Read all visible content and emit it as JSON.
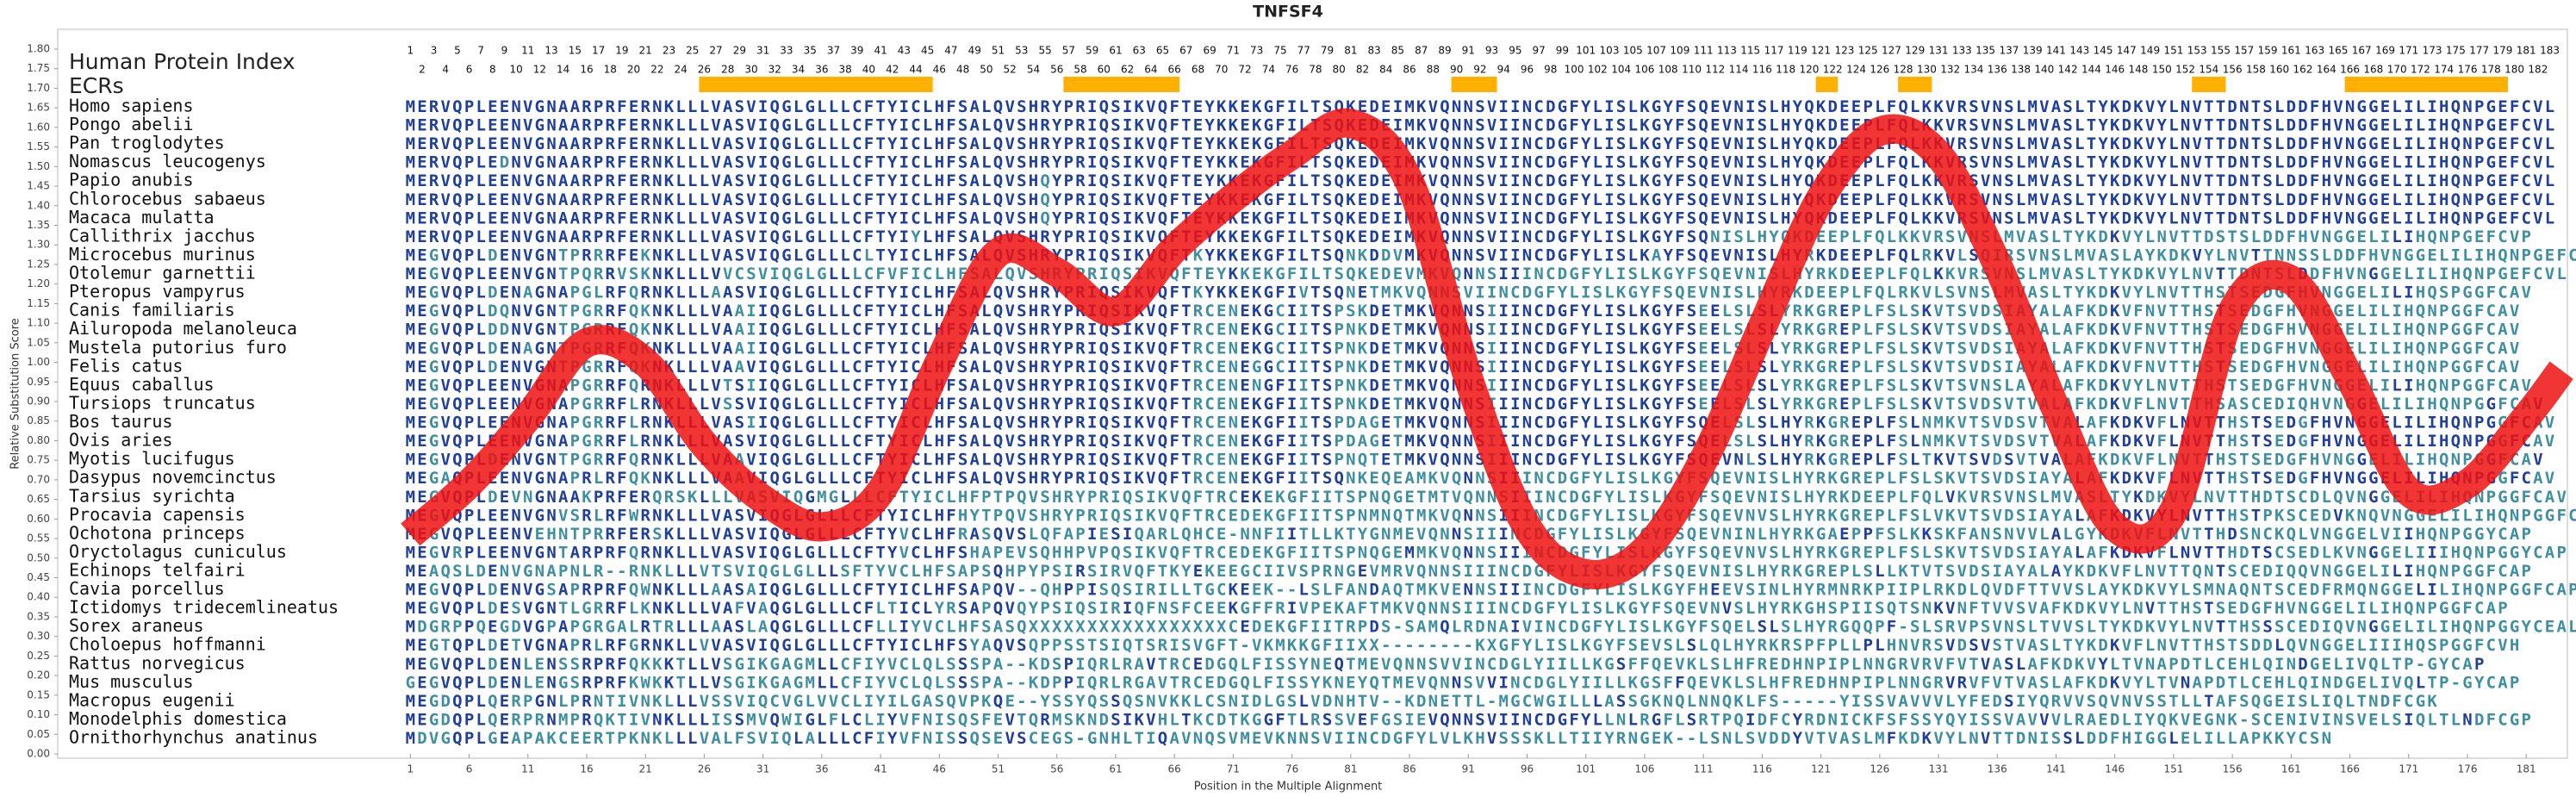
{
  "chart_data": {
    "type": "line",
    "title": "TNFSF4",
    "xlabel": "Position in the Multiple Alignment",
    "ylabel": "Relative Substitution Score",
    "row_header": "Human Protein Index",
    "ecr_label": "ECRs",
    "ecr_color": "#ffb000",
    "ecrs": [
      [
        26,
        45
      ],
      [
        57,
        66
      ],
      [
        90,
        93
      ],
      [
        121,
        122
      ],
      [
        128,
        130
      ],
      [
        153,
        155
      ],
      [
        166,
        179
      ]
    ],
    "protein_index": [
      1,
      2,
      3,
      4,
      5,
      6,
      7,
      8,
      9,
      10,
      11,
      12,
      13,
      14,
      15,
      16,
      17,
      18,
      19,
      20,
      21,
      22,
      23,
      24,
      25,
      26,
      27,
      28,
      29,
      30,
      31,
      32,
      33,
      34,
      35,
      36,
      37,
      38,
      39,
      40,
      41,
      42,
      43,
      44,
      45,
      46,
      47,
      48,
      49,
      50,
      51,
      52,
      53,
      54,
      55,
      56,
      57,
      58,
      59,
      60,
      61,
      62,
      63,
      64,
      65,
      66,
      67,
      68,
      69,
      70,
      71,
      72,
      73,
      74,
      75,
      76,
      77,
      78,
      79,
      80,
      81,
      82,
      83,
      84,
      85,
      86,
      87,
      88,
      89,
      90,
      91,
      92,
      93,
      94,
      95,
      96,
      97,
      98,
      99,
      100,
      101,
      102,
      103,
      104,
      105,
      106,
      107,
      108,
      109,
      110,
      111,
      112,
      113,
      114,
      115,
      116,
      117,
      118,
      119,
      120,
      121,
      122,
      123,
      124,
      125,
      126,
      127,
      128,
      129,
      130,
      131,
      132,
      133,
      134,
      135,
      136,
      137,
      138,
      139,
      140,
      141,
      142,
      143,
      144,
      145,
      146,
      147,
      148,
      149,
      150,
      151,
      152,
      153,
      154,
      155,
      156,
      157,
      158,
      159,
      160,
      161,
      162,
      163,
      164,
      165,
      166,
      167,
      168,
      169,
      170,
      171,
      172,
      173,
      174,
      175,
      176,
      177,
      178,
      179,
      180,
      181,
      182,
      183
    ],
    "xlim": [
      -29,
      184.5
    ],
    "ylim": [
      0,
      1.8
    ],
    "xticks": [
      1,
      6,
      11,
      16,
      21,
      26,
      31,
      36,
      41,
      46,
      51,
      56,
      61,
      66,
      71,
      76,
      81,
      86,
      91,
      96,
      101,
      106,
      111,
      116,
      121,
      126,
      131,
      136,
      141,
      146,
      151,
      156,
      161,
      166,
      171,
      176,
      181
    ],
    "yticks": [
      {
        "value": 0,
        "label": "0.00"
      },
      {
        "value": 0.05,
        "label": "0.05"
      },
      {
        "value": 0.1,
        "label": "0.10"
      },
      {
        "value": 0.15,
        "label": "0.15"
      },
      {
        "value": 0.2,
        "label": "0.20"
      },
      {
        "value": 0.25,
        "label": "0.25"
      },
      {
        "value": 0.3,
        "label": "0.30"
      },
      {
        "value": 0.35,
        "label": "0.35"
      },
      {
        "value": 0.4,
        "label": "0.40"
      },
      {
        "value": 0.45,
        "label": "0.45"
      },
      {
        "value": 0.5,
        "label": "0.50"
      },
      {
        "value": 0.55,
        "label": "0.55"
      },
      {
        "value": 0.6,
        "label": "0.60"
      },
      {
        "value": 0.65,
        "label": "0.65"
      },
      {
        "value": 0.7,
        "label": "0.70"
      },
      {
        "value": 0.75,
        "label": "0.75"
      },
      {
        "value": 0.8,
        "label": "0.80"
      },
      {
        "value": 0.85,
        "label": "0.85"
      },
      {
        "value": 0.9,
        "label": "0.90"
      },
      {
        "value": 0.95,
        "label": "0.95"
      },
      {
        "value": 1,
        "label": "1.00"
      },
      {
        "value": 1.05,
        "label": "1.05"
      },
      {
        "value": 1.1,
        "label": "1.10"
      },
      {
        "value": 1.15,
        "label": "1.15"
      },
      {
        "value": 1.2,
        "label": "1.20"
      },
      {
        "value": 1.25,
        "label": "1.25"
      },
      {
        "value": 1.3,
        "label": "1.30"
      },
      {
        "value": 1.35,
        "label": "1.35"
      },
      {
        "value": 1.4,
        "label": "1.40"
      },
      {
        "value": 1.45,
        "label": "1.45"
      },
      {
        "value": 1.5,
        "label": "1.50"
      },
      {
        "value": 1.55,
        "label": "1.55"
      },
      {
        "value": 1.6,
        "label": "1.60"
      },
      {
        "value": 1.65,
        "label": "1.65"
      },
      {
        "value": 1.7,
        "label": "1.70"
      },
      {
        "value": 1.75,
        "label": "1.75"
      },
      {
        "value": 1.8,
        "label": "1.80"
      }
    ],
    "series": [
      {
        "color": "#ee1111",
        "x": [
          1,
          6,
          11,
          16,
          21,
          26,
          31,
          36,
          41,
          46,
          51,
          56,
          61,
          66,
          71,
          76,
          81,
          86,
          91,
          96,
          101,
          106,
          111,
          116,
          121,
          126,
          131,
          136,
          141,
          146,
          151,
          156,
          161,
          166,
          171,
          176,
          181,
          184
        ],
        "values": [
          0.56,
          0.69,
          0.86,
          1.05,
          1.0,
          0.79,
          0.65,
          0.58,
          0.67,
          1.0,
          1.28,
          1.23,
          1.13,
          1.29,
          1.42,
          1.53,
          1.61,
          1.46,
          0.96,
          0.58,
          0.46,
          0.52,
          0.75,
          1.09,
          1.42,
          1.59,
          1.53,
          1.25,
          0.88,
          0.58,
          0.62,
          1.13,
          1.21,
          0.96,
          0.67,
          0.69,
          0.86,
          0.98
        ]
      }
    ],
    "conserved_color": "#1f3f99",
    "variable_color": "#3f8fa0",
    "alignment": {
      "species": [
        "Homo sapiens",
        "Pongo abelii",
        "Pan troglodytes",
        "Nomascus leucogenys",
        "Papio anubis",
        "Chlorocebus sabaeus",
        "Macaca mulatta",
        "Callithrix jacchus",
        "Microcebus murinus",
        "Otolemur garnettii",
        "Pteropus vampyrus",
        "Canis familiaris",
        "Ailuropoda melanoleuca",
        "Mustela putorius furo",
        "Felis catus",
        "Equus caballus",
        "Tursiops truncatus",
        "Bos taurus",
        "Ovis aries",
        "Myotis lucifugus",
        "Dasypus novemcinctus",
        "Tarsius syrichta",
        "Procavia capensis",
        "Ochotona princeps",
        "Oryctolagus cuniculus",
        "Echinops telfairi",
        "Cavia porcellus",
        "Ictidomys tridecemlineatus",
        "Sorex araneus",
        "Choloepus hoffmanni",
        "Rattus norvegicus",
        "Mus musculus",
        "Macropus eugenii",
        "Monodelphis domestica",
        "Ornithorhynchus anatinus"
      ],
      "sequences": [
        "MERVQPLEENVGNAARPRFERNKLLLVASVIQGLGLLLCFTYICLHFSALQVSHRYPRIQSIKVQFTEYKKEKGFILTSQKEDEIMKVQNNSVIINCDGFYLISLKGYFSQEVNISLHYQKDEEPLFQLKKVRSVNSLMVASLTYKDKVYLNVTTDNTSLDDFHVNGGELILIHQNPGEFCVL",
        "MERVQPLEENVGNAARPRFERNKLLLVASVIQGLGLLLCFTYICLHFSALQVSHRYPRIQSIKVQFTEYKKEKGFILTSQKEDEIMKVQNNSVIINCDGFYLISLKGYFSQEVNISLHYQKDEEPLFQLKKVRSVNSLMVASLTYKDKVYLNVTTDNTSLDDFHVNGGELILIHQNPGEFCVL",
        "MERVQPLEENVGNAARPRFERNKLLLVASVIQGLGLLLCFTYICLHFSALQVSHRYPRIQSIKVQFTEYKKEKGFILTSQKEDEIMKVQNNSVIINCDGFYLISLKGYFSQEVNISLHYQKDEEPLFQLKKVRSVNSLMVASLTYKDKVYLNVTTDNTSLDDFHVNGGELILIHQNPGEFCVL",
        "MERVQPLEDNVGNAARPRFERNKLLLVASVIQGLGLLLCFTYICLHFSALQVSHRYPRIQSIKVQFTEYKKEKGFILTSQKEDEIMKVQNNSVIINCDGFYLISLKGYFSQEVNISLHYQKDEEPLFQLKKVRSVNSLMVASLTYKDKVYLNVTTDNTSLDDFHVNGGELILIHQNPGEFCVL",
        "MERVQPLEENVGNAARPRFERNKLLLVASVIQGLGLLLCFTYICLHFSALQVSHQYPRIQSIKVQFTEYKKEKGFILTSQKEDEIMKVQNNSVIINCDGFYLISLKGYFSQEVNISLHYQKDEEPLFQLKKVRSVNSLMVASLTYKDKVYLNVTTDNTSLDDFHVNGGELILIHQNPGEFCVL",
        "MERVQPLEENVGNAARPRFERNKLLLVASVIQGLGLLLCFTYICLHFSALQVSHQYPRIQSIKVQFTEYKKEKGFILTSQKEDEIMKVQNNSVIINCDGFYLISLKGYFSQEVNISLHYQKDEEPLFQLKKVRSVNSLMVASLTYKDKVYLNVTTDNTSLDDFHVNGGELILIHQNPGEFCVL",
        "MERVQPLEENVGNAARPRFERNKLLLVASVIQGLGLLLCFTYICLHFSALQVSHQYPRIQSIKVQFTEYKKEKGFILTSQKEDEIMKVQNNSVIINCDGFYLISLKGYFSQEVNISLHYQKDEEPLFQLKKVRSVNSLMVASLTYKDKVYLNVTTDNTSLDDFHVNGGELILIHQNPGEFCVL",
        "MERVQPLEENVGNAARPRFERNKLLLVASVIQGLGLLLCFTYIYLHFSALQVSHRYPRIQSIKVQFTEYKKEKGFILTSQKEDEIMKVQNNSVIINCDGFYLISLKGYFSQNISLHYQKDEEPLFQLKKVRSVNSLMVASLTYKDKVYLNVTTDSTSLDDFHVNGGELILIHQNPGEFCVP",
        "MEGVQPLDENVGNTPRRRFEKNKLLLVASVIQGLGLLLCLTYICLHFSALQVSHRYPRIQSIKVQFTKYKKEKGFILTSQNKDDVMKVQNNSVIINCDGFYLISLKAYFSQEVNISLHYRKDEEPLFQLRKVLSQIRSVNSLMVASLAYKDKVYLNVTTNNSSLDDFHVNGGELILIHQNPGEFCAH",
        "MEGVQPLEENVGNTPQRRVSKNKLLLVVCSVIQGLGLLLCFVFICLHFSALQVSHRYPRIQSIKVQFTEYKKEKGFILTSQKEDEVMKVQNNSIIINCDGFYLISLKGYFSQEVNISLHYRKDEEPLFQLKKVRSVNSLMVASLTYKDKVYLNVTTDNTSLDDFHVNGGELILIHQNPGEFCVL",
        "MEGVQPLDENAGNAPGLRFQRNKLLLAASVIQGLGLLLCFTYICLHFSALQVSHRYPRIQSIKVQFTKYKKEKGFIVTSQNETMKVQNNSVIINCDGFYLISLKGYFSQEVNISLHYRKDEEPLFQLRKVLSVNSLMVASLTYKDKVYLNVTTHSTSEDGFHVNGGELILIHQSPGGFCAV",
        "MEGVQPLDQNVGNTPGRRFQKNKLLLVAAIIQGLGLLLCFTYICLHFSALQVSHRYPRIQSIKVQFTRCENEKGCIITSPSKDETMKVQNNSIIINCDGFYLISLKGYFSEELSLSLYRKGREPLFSLSKVTSVDSIAYALAFKDKVFNVTTHSTSEDGFHVNGGELILIHQNPGGFCAV",
        "MEGVQPLDDNVGNTPGRRFQKNKLLLVAAIIQGLGLLLCFTYICLHFSALQVSHRYPRIQSIKVQFTRCENEKGCIITSPNKDETMKVQNNSIIINCDGFYLISLKGYFSEELSLSLYRKGREPLFSLSKVTSVDSIAYALAFKDKVFNVTTHSTSEDGFHVNGGELILIHQNPGGFCAV",
        "MEGVQPLDENAGNTPGRRFQKNKLLLVAAIIQGLGLLLCFTYICLHFSALQVSHRYPRIQSIKVQFTRCENEKGCIITSPNKDETMKVQNNSIIINCDGFYLISLKGYFSEELSLSLYRKGREPLFSLSKVTSVDSIAYALAFKDKVFNVTTHSTSEDGFHVNGGELILIHQNPGGFCAV",
        "MEGVQPLDENVGNTPGRRFQKNKLLLVAAVIQGLGLLLCFTYICLHFSALQVSHRYPRIQSIKVQFTRCENEGGCIITSPNKDETMKVQNNSIIINCDGFYLISLKGYFSEELSLSLYRKGREPLFSLSKVTSVDSIAYALAFKDKVFNVTTHSTSEDGFHVNGGELILIHQNPGGFCAV",
        "MEGVQPLEENVGNAPGRRFQRNKLLLVTSIIQGLGLLLCFTYICLHFSALQVSHRYPRIQSIKVQFTRCENENGFIITSPNKDETMKVQNNSIIINCDGFYLISLKGYFSEELSLSLYRKGREPLFSLSKVTSVNSLAYALAFKDKVYLNVTTHSTSEDGFHVNGGELILIHQNPGGFCAV",
        "MEGVQPLEENVGNAPGRRFLRNKLLLVSSVIQGLGLLLCFTYICLHFSALQVSHRYPRIQSIKVQFTRCENEKGFIITSPNKDETMKVQNNSIIINCDGFYLISLKGYFSEELSLSLYRKGREPLFSLSKVTSVDSVTVALAFKDKVFLNVTTHSASCEDIQHVNGGELILIHQNPGGFCAV",
        "MEGVQPLEENVGNAPGRRFLRNKLLLVASIIQGLGLLLCFTYICLHFSALQVSHRYPRIQSIKVQFTRCENEKGFIITSPDAGETMKVQNNSIIINCDGFYLISLKGYFSQELSLSLHYRKGREPLFSLNMKVTSVDSVTVALAFKDKVFLNVTTHSTSEDGFHVNGGELILIHQNPGGFCAV",
        "MEGVQPLEENVGNAPGRRFLRNKLLLVASVIQGLGLLLCFTYICLHFSALQVSHRYPRIQSIKVQFTRCENEKGFIITSPDAGETMKVQNNSIIINCDGFYLISLKGYFSQELSLSLHYRKGREPLFSLNMKVTSVDSVTVALAFKDKVFLNVTTHSTSEDGFHVNGGELILIHQNPGGFCAV",
        "MEGVQPLDENVGNTPGRRFQRNKLLLVAAVIQGLGLLLCFTYICLHFSALQVSHRYPRIQSIKVQFTRCENEKGFIITSPNQTETMKVQNNSIIINCDGFYLISLKGYFSQEVNLSLHYRKGREPLFSLTKVTSVDSVTVALAFKDKVFLNVTTHSTSEDGFHVNGGELILIHQNPGGFCAV",
        "MEGAQPLEENVGNAPRLRFQKNKLLLVAAVIQGLGLLLCFTYICLHFSALQVSHRYPRIQSIKVQFTRCENEKGFIITSQNKEQEAMKVQNNSIIINCDGFYLISLKGYFSQEVNISLHYRKGREPLFSLSKVTSVDSIAYALAFKDKVFLNVTTHSTSEDGFHVNGGELILIHQNPGGFCAV",
        "MEGVQPLDEVNGNAAKPRFERQRSKLLLVASVIQGMGLLLCFTYICLHFPTPQVSHRYPRIQSIKVQFTRCEKEKGFIITSPNQGETMTVQNNSIIINCDGFYLISLKGYFSQEVNISLHYRKDEEPLFQLVKVRSVNSLMVASLTYKDKVYLNVTTHDTSCDLQVNGGELILIHQNPGGFCAV",
        "MEGVQPLEENVGNVSRLRFWRNKLLLVASVIQGLGLLLCFTYICLHFHYTPQVSHRYPRIQSIKVQFTRCEDEKGFIITSPNMNQTMKVQNNSIIINCDGFYLISLKGYFSQEVNVSLHYRKGREPLFSLVKVTSVDSIAYALAFKDKVYLNVTTHSTPKSCEDVKNQVNGGELILIHQNPGGFCAQ",
        "MEGVQPLEENVEHNTPRRFERSKLLLVASVIQGLGLLLCFTYVCLHFRASQVSLQFAPIESIQARLQHCE-NNFIITLLKTYGNMEVQNNSIIINCDGFYLISLKGYFSQEVNINLHYRKGAEPPFSLKKSKFANSNVVLALGYKDKVFLNVTTHDSNCKQLVNGGELVIIHQNPGGYCAP",
        "MEGVRPLEENVGNTARPRFQRNKLLLVASVIQGLGLLLCFTYVCLHFSHAPEVSQHHPVPQSIKVQFTRCEDEKGFIITSPNQGEMMKVQNNSIIINCDGFYLISLKGYFSQEVNVSLHYRKGREPLFSLSKVTSVDSIAYALAFKDKVFLNVTTHDTSCSEDLKVNGGELIIIHQNPGGYCAP",
        "MEAQSLDENVGNAPNLR--RNKLLLVTSVIQGLGLLLSFTYVCLHFSAPSQHPYPSIRSIRVQFTKYEKEEGCIIVSPRNGEVMRVQNNSIIINCDGFYLISLKGYFSQEVNISLHYRKGREPLSLLKTVTSVDSIAYALAYKDKVFLNVTTQNTSCEDIQQVNGGELILIHQNPGGFCAP",
        "MEGVQPLDENVGSAPRPRFQWNKLLLAASAIQGLGLLLCFTYICLHFSAPQV--QHPPISQSIRILLTGCKEEK--LSLFANDAQTMKVENNSIIINCDGFYLISLKGYFHEEVSINLHYRMNRKPIIPLRKDLQVDFTTVVSLAYKDKVYLSMNAQNTSCEDFRMQNGGELILIHQNPGGFCAP",
        "MEGVQPLDESVGNTLGRRFLKNKLLLVAFVAQGLGLLLCFLTICLYRSAPQVQYPSIQSIRIQFNSFCEEKGFFRIVPEKAFTMKVQNNSIIINCDGFYLISLKGYFSQEVNVSLHYRKGHSPIISQTSNKVNFTVVSVAFKDKVYLNVTTHSTSEDGFHVNGGELILIHQNPGGFCAP",
        "MDGRPPQEGDVGPAPGRGALRTRLLLAASLAQGLGLLLCFLLIYVCLHFSASQXXXXXXXXXXXXXXXXXCEDEKGFIITRPDS-SAMQLRDNAIVINCDGFYLISLKGYFSQELSLSLHYRGQQPF-SLSRVPSVNSLTVVSLTYKDKVYLNVTTHSSSCEDIQVNGGELILIHQNPGGYCEAL",
        "MEGTQPLDETVGNAPRLRFGRNKLLVVASVIQGLGLLLCFTYICLHFSYAQVSQPPSSTSIQTSRISVGFT-VKMKKGFIIXX--------KXGFYLISLKGYFSEVSLSLQLHYRKRSPFPLLPLHNVRSVDSVSTVASLTYKDKVFLNVTTHSTSDDLQVNGGELIIIHQSPGGFCVH",
        "MEGVQPLDENLENSSRPRFQKKKTLLVSGIKGAGMLLCFIYVCLQLSSSPA--KDSPIQRLRAVTRCEDGQLFISSYNEQTMEVQNNSVVINCDGLYIILLKGSFFQEVKLSLHFREDHNPIPLNNGRVRVFVTVASLAFKDKVYLTVNAPDTLCEHLQINDGELIVQLTP-GYCAP",
        "GEGVQPLDENLENGSRPRFKWKKTLLVSGIKGAGMLLCFIYVCLQLSSSPA--KDPPIQRLRGAVTRCEDGQLFISSYKNEYQTMEVQNNSVVINCDGLYIILLKGSFFQEVKLSLHFREDHNPIPLNNGRVRVFVTVASLAFKDKVYLTVNAPDTLCEHLQINDGELIVQLTP-GYCAP",
        "MEGDQPLQERPGNLPRNTIVNKLLLVSSVIQCVGLVVCLIYILGASQVPKQE--YSSYQSSQSNVKKLCSNIDLGSLVDNHTV--KDNETTL-MGCWGILLLASSGKNQLNNQKLFS-----YISSVAVVVLYFEDSIYQRVVSQVNVSSTLLTAFSQGEISLIQLTNDFCGK",
        "MEGDQPLQERPRNMPRQKTIVNKLLLISSMVQWIGLFLCLIYVFNISQSFEVTQRMSKNDSIKVHLTKCDTKGGFTLRSSVEFGSIEVQNNSVIINCDGFYLLNLRGFLSRTPQIDFCYRDNICKFSFSSYQYISSVAVVVLRAEDLIYQKVEGNK-SCENIVINSVELSIQLTLNDFCGP",
        "MDVGQPLGEAPAKCEERTPKNKLLLVALFSVIQLALLLCFIYVFNISSQSEVSCEGS-GNHLTIQAVNQSVMEVKNNSVIINCDGFYLVLKHVSSSKLLTIIYRNGEK--LSNLSVDDYVTVASLMFKDKVYLNVTTDNISSLDDFHIGGLELILLAPKKYCSN"
      ]
    }
  }
}
